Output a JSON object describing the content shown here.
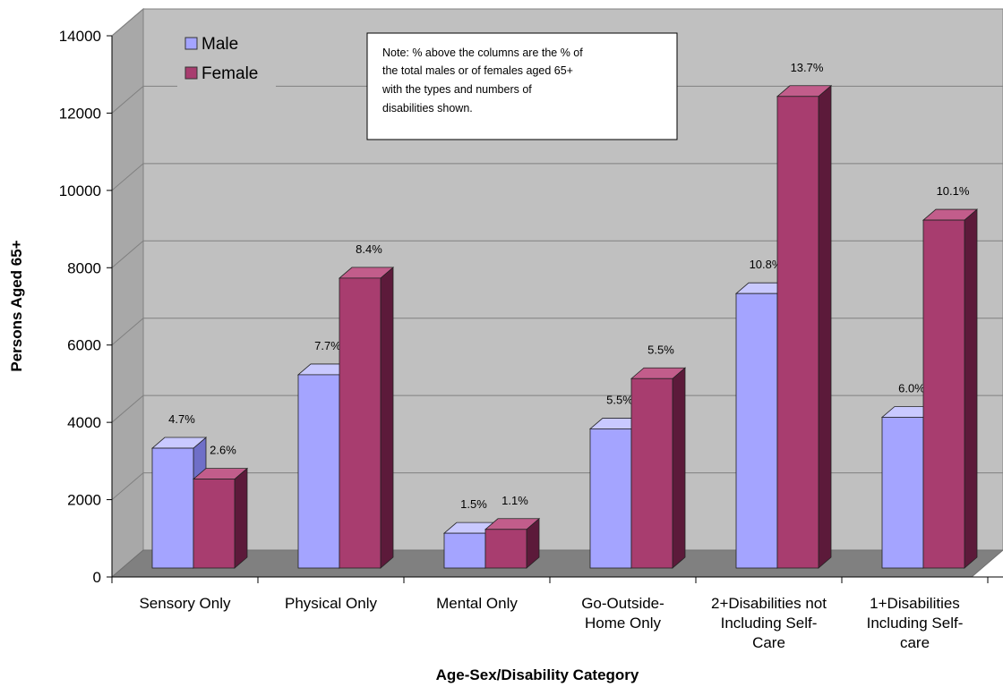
{
  "chart_data": {
    "type": "bar",
    "xlabel": "Age-Sex/Disability Category",
    "ylabel": "Persons Aged 65+",
    "ylim": [
      0,
      14000
    ],
    "yticks": [
      0,
      2000,
      4000,
      6000,
      8000,
      10000,
      12000,
      14000
    ],
    "grid": true,
    "legend_position": "top-left",
    "categories": [
      [
        "Sensory Only"
      ],
      [
        "Physical Only"
      ],
      [
        "Mental Only"
      ],
      [
        "Go-Outside-",
        "Home Only"
      ],
      [
        "2+Disabilities not",
        "Including Self-",
        "Care"
      ],
      [
        "1+Disabilities",
        "Including Self-",
        "care"
      ]
    ],
    "series": [
      {
        "name": "Male",
        "color": "#a4a4ff",
        "side_color": "#6f6fc8",
        "top_color": "#c9c9ff",
        "values": [
          3100,
          5000,
          900,
          3600,
          7100,
          3900
        ],
        "labels": [
          "4.7%",
          "7.7%",
          "1.5%",
          "5.5%",
          "10.8%",
          "6.0%"
        ]
      },
      {
        "name": "Female",
        "color": "#a83d6f",
        "side_color": "#5c1a3a",
        "top_color": "#c25d8b",
        "values": [
          2300,
          7500,
          1000,
          4900,
          12200,
          9000
        ],
        "labels": [
          "2.6%",
          "8.4%",
          "1.1%",
          "5.5%",
          "13.7%",
          "10.1%"
        ]
      }
    ],
    "annotation": [
      "Note: % above the columns are the % of",
      "the total males or of females aged 65+",
      "with the types and numbers of",
      "disabilities shown."
    ]
  }
}
